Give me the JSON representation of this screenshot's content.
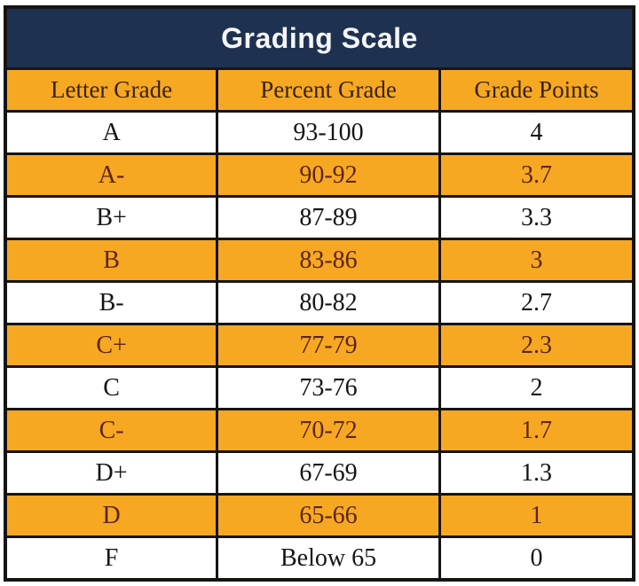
{
  "title": "Grading Scale",
  "colors": {
    "navy_header_bg": "#1e3150",
    "gold_accent": "#f7a823",
    "grid_border": "#161412",
    "title_text": "#f4f6f8",
    "header_text": "#38220e",
    "text_on_gold_rows": "#5d2511",
    "text_on_white_rows": "#171413"
  },
  "chart_data": {
    "type": "table",
    "title": "Grading Scale",
    "columns": [
      "Letter Grade",
      "Percent Grade",
      "Grade Points"
    ],
    "rows": [
      [
        "A",
        "93-100",
        "4"
      ],
      [
        "A-",
        "90-92",
        "3.7"
      ],
      [
        "B+",
        "87-89",
        "3.3"
      ],
      [
        "B",
        "83-86",
        "3"
      ],
      [
        "B-",
        "80-82",
        "2.7"
      ],
      [
        "C+",
        "77-79",
        "2.3"
      ],
      [
        "C",
        "73-76",
        "2"
      ],
      [
        "C-",
        "70-72",
        "1.7"
      ],
      [
        "D+",
        "67-69",
        "1.3"
      ],
      [
        "D",
        "65-66",
        "1"
      ],
      [
        "F",
        "Below 65",
        "0"
      ]
    ],
    "layout": {
      "alternating_row_shading": "odd rows gold, even rows white",
      "grid": true,
      "title_position": "top banner"
    }
  }
}
